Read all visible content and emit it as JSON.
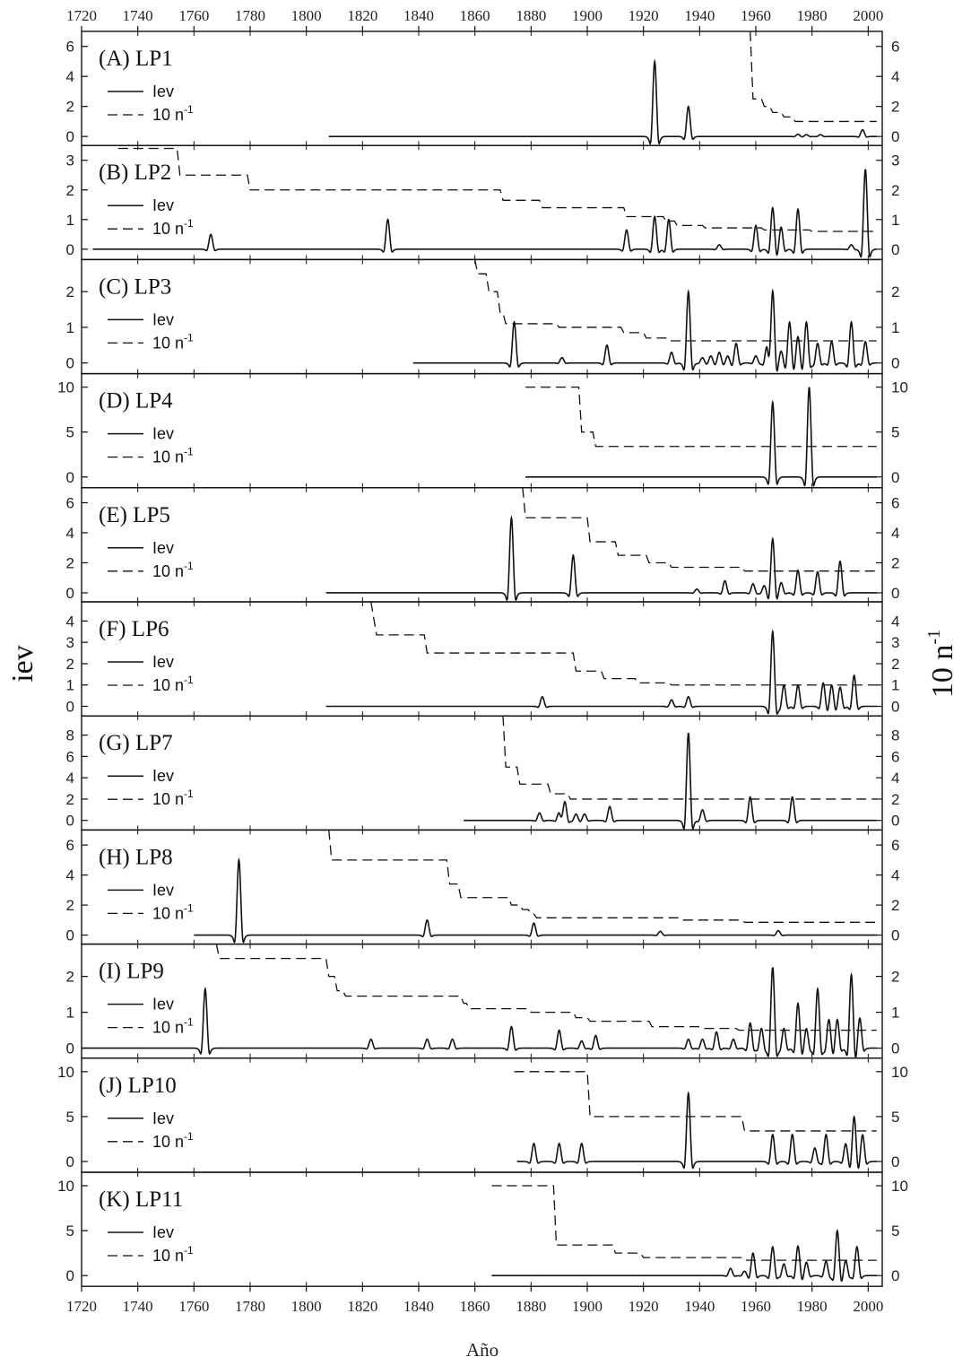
{
  "chart_data": {
    "type": "line",
    "xlabel": "Año",
    "ylabel_left": "iev",
    "ylabel_right": "10 n",
    "ylabel_right_superscript": "-1",
    "xlim": [
      1720,
      2005
    ],
    "x_ticks": [
      1720,
      1740,
      1760,
      1780,
      1800,
      1820,
      1840,
      1860,
      1880,
      1900,
      1920,
      1940,
      1960,
      1980,
      2000
    ],
    "legend": {
      "solid": "Iev",
      "dashed": "10 n",
      "dashed_superscript": "-1"
    },
    "panels": [
      {
        "title": "(A) LP1",
        "ylim": [
          -0.6,
          7
        ],
        "y_ticks": [
          0,
          2,
          4,
          6
        ],
        "start": 1808,
        "peaks": [
          [
            1924,
            5
          ],
          [
            1936,
            2
          ],
          [
            1975,
            0.15
          ],
          [
            1978,
            0.12
          ],
          [
            1983,
            0.12
          ],
          [
            1998,
            0.45
          ]
        ],
        "dashed": [
          [
            1958,
            7
          ],
          [
            1959,
            2.5
          ],
          [
            1962,
            2.5
          ],
          [
            1963,
            2.0
          ],
          [
            1965,
            2.0
          ],
          [
            1966,
            1.6
          ],
          [
            1969,
            1.6
          ],
          [
            1970,
            1.3
          ],
          [
            1973,
            1.3
          ],
          [
            1974,
            1.0
          ],
          [
            2003,
            1.0
          ]
        ]
      },
      {
        "title": "(B) LP2",
        "ylim": [
          -0.35,
          3.5
        ],
        "y_ticks": [
          0,
          1,
          2,
          3
        ],
        "start": 1724,
        "peaks": [
          [
            1766,
            0.5
          ],
          [
            1829,
            1.0
          ],
          [
            1914,
            0.65
          ],
          [
            1924,
            1.1
          ],
          [
            1929,
            1.0
          ],
          [
            1947,
            0.15
          ],
          [
            1960,
            0.8
          ],
          [
            1966,
            1.4
          ],
          [
            1969,
            0.75
          ],
          [
            1975,
            1.35
          ],
          [
            1994,
            0.15
          ],
          [
            1999,
            2.7
          ]
        ],
        "dashed": [
          [
            1733,
            3.4
          ],
          [
            1754,
            3.4
          ],
          [
            1755,
            2.5
          ],
          [
            1779,
            2.5
          ],
          [
            1780,
            2.0
          ],
          [
            1869,
            2.0
          ],
          [
            1870,
            1.65
          ],
          [
            1883,
            1.65
          ],
          [
            1884,
            1.4
          ],
          [
            1913,
            1.4
          ],
          [
            1914,
            1.1
          ],
          [
            1927,
            1.1
          ],
          [
            1928,
            0.95
          ],
          [
            1931,
            0.95
          ],
          [
            1932,
            0.8
          ],
          [
            1941,
            0.8
          ],
          [
            1942,
            0.72
          ],
          [
            1962,
            0.72
          ],
          [
            1963,
            0.65
          ],
          [
            1979,
            0.65
          ],
          [
            1980,
            0.6
          ],
          [
            2003,
            0.6
          ]
        ]
      },
      {
        "title": "(C) LP3",
        "ylim": [
          -0.3,
          2.9
        ],
        "y_ticks": [
          0,
          1,
          2
        ],
        "start": 1838,
        "peaks": [
          [
            1874,
            1.15
          ],
          [
            1891,
            0.15
          ],
          [
            1907,
            0.5
          ],
          [
            1930,
            0.3
          ],
          [
            1936,
            2.0
          ],
          [
            1941,
            0.15
          ],
          [
            1944,
            0.2
          ],
          [
            1947,
            0.3
          ],
          [
            1950,
            0.2
          ],
          [
            1953,
            0.55
          ],
          [
            1960,
            0.2
          ],
          [
            1964,
            0.55
          ],
          [
            1966,
            2.05
          ],
          [
            1969,
            0.35
          ],
          [
            1972,
            1.15
          ],
          [
            1975,
            0.75
          ],
          [
            1978,
            1.15
          ],
          [
            1982,
            0.55
          ],
          [
            1987,
            0.6
          ],
          [
            1994,
            1.15
          ],
          [
            1999,
            0.6
          ]
        ],
        "dashed": [
          [
            1860,
            2.9
          ],
          [
            1861,
            2.5
          ],
          [
            1864,
            2.5
          ],
          [
            1865,
            2.0
          ],
          [
            1868,
            2.0
          ],
          [
            1869,
            1.4
          ],
          [
            1870,
            1.4
          ],
          [
            1871,
            1.1
          ],
          [
            1889,
            1.1
          ],
          [
            1890,
            1.0
          ],
          [
            1912,
            1.0
          ],
          [
            1913,
            0.85
          ],
          [
            1920,
            0.85
          ],
          [
            1921,
            0.7
          ],
          [
            1928,
            0.7
          ],
          [
            1929,
            0.62
          ],
          [
            2003,
            0.62
          ]
        ]
      },
      {
        "title": "(D) LP4",
        "ylim": [
          -1.2,
          11.5
        ],
        "y_ticks": [
          0,
          5,
          10
        ],
        "start": 1878,
        "peaks": [
          [
            1966,
            8.3
          ],
          [
            1979,
            10
          ]
        ],
        "dashed": [
          [
            1878,
            10
          ],
          [
            1897,
            10
          ],
          [
            1898,
            5
          ],
          [
            1902,
            5
          ],
          [
            1903,
            3.4
          ],
          [
            2003,
            3.4
          ]
        ]
      },
      {
        "title": "(E) LP5",
        "ylim": [
          -0.6,
          7
        ],
        "y_ticks": [
          0,
          2,
          4,
          6
        ],
        "start": 1807,
        "peaks": [
          [
            1873,
            5
          ],
          [
            1895,
            2.5
          ],
          [
            1939,
            0.25
          ],
          [
            1949,
            0.8
          ],
          [
            1959,
            0.6
          ],
          [
            1963,
            0.5
          ],
          [
            1966,
            3.6
          ],
          [
            1969,
            0.7
          ],
          [
            1975,
            1.5
          ],
          [
            1982,
            1.4
          ],
          [
            1990,
            2.1
          ]
        ],
        "dashed": [
          [
            1877,
            7
          ],
          [
            1878,
            5.0
          ],
          [
            1900,
            5.0
          ],
          [
            1901,
            3.4
          ],
          [
            1910,
            3.4
          ],
          [
            1911,
            2.5
          ],
          [
            1921,
            2.5
          ],
          [
            1922,
            2.0
          ],
          [
            1929,
            2.0
          ],
          [
            1930,
            1.7
          ],
          [
            1955,
            1.7
          ],
          [
            1956,
            1.45
          ],
          [
            2003,
            1.45
          ]
        ]
      },
      {
        "title": "(F) LP6",
        "ylim": [
          -0.45,
          4.9
        ],
        "y_ticks": [
          0,
          1,
          2,
          3,
          4
        ],
        "start": 1807,
        "peaks": [
          [
            1884,
            0.45
          ],
          [
            1930,
            0.3
          ],
          [
            1936,
            0.45
          ],
          [
            1966,
            3.5
          ],
          [
            1970,
            1.0
          ],
          [
            1975,
            1.0
          ],
          [
            1984,
            1.1
          ],
          [
            1987,
            1.0
          ],
          [
            1990,
            0.9
          ],
          [
            1995,
            1.45
          ]
        ],
        "dashed": [
          [
            1823,
            4.9
          ],
          [
            1825,
            3.35
          ],
          [
            1842,
            3.35
          ],
          [
            1843,
            2.5
          ],
          [
            1895,
            2.5
          ],
          [
            1896,
            1.65
          ],
          [
            1905,
            1.65
          ],
          [
            1906,
            1.3
          ],
          [
            1917,
            1.3
          ],
          [
            1918,
            1.1
          ],
          [
            1929,
            1.1
          ],
          [
            1930,
            1.0
          ],
          [
            2003,
            1.0
          ]
        ]
      },
      {
        "title": "(G) LP7",
        "ylim": [
          -0.9,
          9.8
        ],
        "y_ticks": [
          0,
          2,
          4,
          6,
          8
        ],
        "start": 1856,
        "peaks": [
          [
            1883,
            0.7
          ],
          [
            1890,
            0.8
          ],
          [
            1892,
            1.8
          ],
          [
            1896,
            0.6
          ],
          [
            1899,
            0.6
          ],
          [
            1908,
            1.3
          ],
          [
            1936,
            8.2
          ],
          [
            1941,
            1.0
          ],
          [
            1958,
            2.2
          ],
          [
            1973,
            2.2
          ]
        ],
        "dashed": [
          [
            1870,
            9.8
          ],
          [
            1871,
            5.0
          ],
          [
            1875,
            5.0
          ],
          [
            1876,
            3.4
          ],
          [
            1886,
            3.4
          ],
          [
            1887,
            2.5
          ],
          [
            1893,
            2.5
          ],
          [
            1894,
            2.0
          ],
          [
            2003,
            2.0
          ]
        ]
      },
      {
        "title": "(H) LP8",
        "ylim": [
          -0.6,
          7
        ],
        "y_ticks": [
          0,
          2,
          4,
          6
        ],
        "start": 1760,
        "peaks": [
          [
            1776,
            5
          ],
          [
            1843,
            1.0
          ],
          [
            1881,
            0.8
          ],
          [
            1926,
            0.25
          ],
          [
            1968,
            0.3
          ]
        ],
        "dashed": [
          [
            1808,
            7
          ],
          [
            1809,
            5.0
          ],
          [
            1850,
            5.0
          ],
          [
            1851,
            3.4
          ],
          [
            1854,
            3.4
          ],
          [
            1855,
            2.5
          ],
          [
            1872,
            2.5
          ],
          [
            1873,
            2.0
          ],
          [
            1876,
            2.0
          ],
          [
            1877,
            1.7
          ],
          [
            1879,
            1.7
          ],
          [
            1880,
            1.4
          ],
          [
            1881,
            1.4
          ],
          [
            1882,
            1.15
          ],
          [
            1933,
            1.15
          ],
          [
            1934,
            1.0
          ],
          [
            1955,
            1.0
          ],
          [
            1956,
            0.85
          ],
          [
            2003,
            0.85
          ]
        ]
      },
      {
        "title": "(I) LP9",
        "ylim": [
          -0.28,
          2.9
        ],
        "y_ticks": [
          0,
          1,
          2
        ],
        "start": 1720,
        "peaks": [
          [
            1764,
            1.65
          ],
          [
            1823,
            0.25
          ],
          [
            1843,
            0.25
          ],
          [
            1852,
            0.25
          ],
          [
            1873,
            0.6
          ],
          [
            1890,
            0.5
          ],
          [
            1898,
            0.2
          ],
          [
            1903,
            0.35
          ],
          [
            1936,
            0.25
          ],
          [
            1941,
            0.25
          ],
          [
            1946,
            0.45
          ],
          [
            1952,
            0.25
          ],
          [
            1958,
            0.7
          ],
          [
            1962,
            0.55
          ],
          [
            1966,
            2.25
          ],
          [
            1970,
            0.55
          ],
          [
            1975,
            1.25
          ],
          [
            1978,
            0.55
          ],
          [
            1982,
            1.65
          ],
          [
            1986,
            0.8
          ],
          [
            1989,
            0.8
          ],
          [
            1994,
            2.05
          ],
          [
            1997,
            0.85
          ]
        ],
        "dashed": [
          [
            1768,
            2.9
          ],
          [
            1769,
            2.5
          ],
          [
            1807,
            2.5
          ],
          [
            1808,
            2.0
          ],
          [
            1810,
            2.0
          ],
          [
            1811,
            1.6
          ],
          [
            1813,
            1.6
          ],
          [
            1814,
            1.45
          ],
          [
            1855,
            1.45
          ],
          [
            1856,
            1.25
          ],
          [
            1857,
            1.25
          ],
          [
            1858,
            1.1
          ],
          [
            1879,
            1.1
          ],
          [
            1880,
            1.0
          ],
          [
            1895,
            1.0
          ],
          [
            1896,
            0.85
          ],
          [
            1900,
            0.85
          ],
          [
            1901,
            0.75
          ],
          [
            1922,
            0.75
          ],
          [
            1923,
            0.6
          ],
          [
            1940,
            0.6
          ],
          [
            1941,
            0.55
          ],
          [
            1953,
            0.55
          ],
          [
            1954,
            0.5
          ],
          [
            2003,
            0.5
          ]
        ]
      },
      {
        "title": "(J) LP10",
        "ylim": [
          -1.2,
          11.5
        ],
        "y_ticks": [
          0,
          5,
          10
        ],
        "start": 1875,
        "peaks": [
          [
            1881,
            2.0
          ],
          [
            1890,
            2.0
          ],
          [
            1898,
            2.0
          ],
          [
            1936,
            7.6
          ],
          [
            1966,
            3.0
          ],
          [
            1973,
            3.0
          ],
          [
            1981,
            1.5
          ],
          [
            1985,
            3.0
          ],
          [
            1992,
            2.0
          ],
          [
            1995,
            5.0
          ],
          [
            1998,
            3.0
          ]
        ],
        "dashed": [
          [
            1874,
            10
          ],
          [
            1900,
            10
          ],
          [
            1901,
            5.0
          ],
          [
            1955,
            5.0
          ],
          [
            1956,
            3.4
          ],
          [
            2003,
            3.4
          ]
        ]
      },
      {
        "title": "(K) LP11",
        "ylim": [
          -1.2,
          11.5
        ],
        "y_ticks": [
          0,
          5,
          10
        ],
        "start": 1866,
        "peaks": [
          [
            1951,
            0.8
          ],
          [
            1956,
            0.5
          ],
          [
            1959,
            2.5
          ],
          [
            1966,
            3.2
          ],
          [
            1970,
            1.3
          ],
          [
            1975,
            3.3
          ],
          [
            1978,
            1.5
          ],
          [
            1985,
            1.6
          ],
          [
            1989,
            5.0
          ],
          [
            1992,
            1.7
          ],
          [
            1996,
            3.2
          ]
        ],
        "dashed": [
          [
            1866,
            10
          ],
          [
            1888,
            10
          ],
          [
            1889,
            3.4
          ],
          [
            1909,
            3.4
          ],
          [
            1910,
            2.5
          ],
          [
            1919,
            2.5
          ],
          [
            1920,
            2.0
          ],
          [
            1955,
            2.0
          ],
          [
            1956,
            1.7
          ],
          [
            2003,
            1.7
          ]
        ]
      }
    ]
  }
}
